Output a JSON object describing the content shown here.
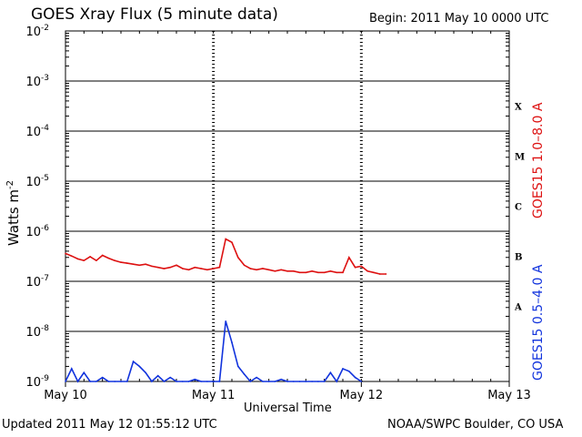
{
  "header": {
    "title": "GOES Xray Flux (5 minute data)",
    "begin": "Begin:  2011 May 10 0000 UTC"
  },
  "footer": {
    "updated": "Updated 2011 May 12 01:55:12 UTC",
    "credit": "NOAA/SWPC Boulder, CO USA"
  },
  "chart_data": {
    "type": "line",
    "title": "GOES Xray Flux (5 minute data)",
    "xlabel": "Universal Time",
    "ylabel_base": "Watts m",
    "ylabel_exp": "-2",
    "yscale": "log",
    "ylim": [
      1e-09,
      0.01
    ],
    "xlim_hours": [
      0,
      72
    ],
    "x_ticks": [
      {
        "label": "May 10",
        "hour": 0
      },
      {
        "label": "May 11",
        "hour": 24
      },
      {
        "label": "May 12",
        "hour": 48
      },
      {
        "label": "May 13",
        "hour": 72
      }
    ],
    "y_ticks": [
      {
        "exp": -9,
        "label": "10",
        "sup": "-9"
      },
      {
        "exp": -8,
        "label": "10",
        "sup": "-8"
      },
      {
        "exp": -7,
        "label": "10",
        "sup": "-7"
      },
      {
        "exp": -6,
        "label": "10",
        "sup": "-6"
      },
      {
        "exp": -5,
        "label": "10",
        "sup": "-5"
      },
      {
        "exp": -4,
        "label": "10",
        "sup": "-4"
      },
      {
        "exp": -3,
        "label": "10",
        "sup": "-3"
      },
      {
        "exp": -2,
        "label": "10",
        "sup": "-2"
      }
    ],
    "flare_classes": [
      {
        "label": "A",
        "exp": -7.5
      },
      {
        "label": "B",
        "exp": -6.5
      },
      {
        "label": "C",
        "exp": -5.5
      },
      {
        "label": "M",
        "exp": -4.5
      },
      {
        "label": "X",
        "exp": -3.5
      }
    ],
    "grid": true,
    "series": [
      {
        "name": "GOES15 1.0–8.0 A",
        "color": "#dd1111",
        "x": [
          0,
          1,
          2,
          3,
          4,
          5,
          6,
          7,
          8,
          9,
          10,
          11,
          12,
          13,
          14,
          15,
          16,
          17,
          18,
          19,
          20,
          21,
          22,
          23,
          24,
          25,
          26,
          27,
          28,
          29,
          30,
          31,
          32,
          33,
          34,
          35,
          36,
          37,
          38,
          39,
          40,
          41,
          42,
          43,
          44,
          45,
          46,
          47,
          48,
          49,
          50,
          51,
          52
        ],
        "y": [
          3.6e-07,
          3.2e-07,
          2.8e-07,
          2.6e-07,
          3.1e-07,
          2.6e-07,
          3.3e-07,
          2.9e-07,
          2.6e-07,
          2.4e-07,
          2.3e-07,
          2.2e-07,
          2.1e-07,
          2.2e-07,
          2e-07,
          1.9e-07,
          1.8e-07,
          1.9e-07,
          2.1e-07,
          1.8e-07,
          1.7e-07,
          1.9e-07,
          1.8e-07,
          1.7e-07,
          1.8e-07,
          1.9e-07,
          7e-07,
          6e-07,
          3e-07,
          2.1e-07,
          1.8e-07,
          1.7e-07,
          1.8e-07,
          1.7e-07,
          1.6e-07,
          1.7e-07,
          1.6e-07,
          1.6e-07,
          1.5e-07,
          1.5e-07,
          1.6e-07,
          1.5e-07,
          1.5e-07,
          1.6e-07,
          1.5e-07,
          1.5e-07,
          3e-07,
          1.9e-07,
          2e-07,
          1.6e-07,
          1.5e-07,
          1.4e-07,
          1.4e-07
        ]
      },
      {
        "name": "GOES15 0.5–4.0 A",
        "color": "#1133dd",
        "x": [
          0,
          1,
          2,
          3,
          4,
          5,
          6,
          7,
          8,
          9,
          10,
          11,
          12,
          13,
          14,
          15,
          16,
          17,
          18,
          19,
          20,
          21,
          22,
          23,
          24,
          25,
          26,
          27,
          28,
          29,
          30,
          31,
          32,
          33,
          34,
          35,
          36,
          37,
          38,
          39,
          40,
          41,
          42,
          43,
          44,
          45,
          46,
          47,
          48
        ],
        "y": [
          1e-09,
          1.8e-09,
          1e-09,
          1.5e-09,
          1e-09,
          1e-09,
          1.2e-09,
          1e-09,
          1e-09,
          1e-09,
          1e-09,
          2.5e-09,
          2e-09,
          1.5e-09,
          1e-09,
          1.3e-09,
          1e-09,
          1.2e-09,
          1e-09,
          1e-09,
          1e-09,
          1.1e-09,
          1e-09,
          1e-09,
          1e-09,
          1e-09,
          1.6e-08,
          6e-09,
          2e-09,
          1.4e-09,
          1e-09,
          1.2e-09,
          1e-09,
          1e-09,
          1e-09,
          1.1e-09,
          1e-09,
          1e-09,
          1e-09,
          1e-09,
          1e-09,
          1e-09,
          1e-09,
          1.5e-09,
          1e-09,
          1.8e-09,
          1.6e-09,
          1.2e-09,
          1e-09
        ]
      }
    ]
  }
}
